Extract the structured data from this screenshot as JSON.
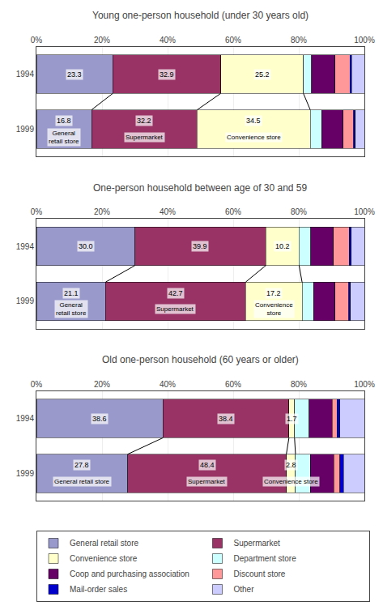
{
  "chart_data": [
    {
      "type": "bar",
      "orientation": "horizontal",
      "stacked": true,
      "grid": true,
      "legend": "bottom",
      "title": "Young one-person household (under 30 years old)",
      "categories": [
        "1994",
        "1999"
      ],
      "series": [
        {
          "name": "General retail store",
          "color": "#9999cc",
          "values": [
            23.3,
            16.8
          ],
          "value_labels": [
            "23.3",
            "16.8"
          ]
        },
        {
          "name": "Supermarket",
          "color": "#993366",
          "values": [
            32.9,
            32.2
          ],
          "value_labels": [
            "32.9",
            "32.2"
          ]
        },
        {
          "name": "Convenience store",
          "color": "#ffffcc",
          "values": [
            25.2,
            34.5
          ],
          "value_labels": [
            "25.2",
            "34.5"
          ]
        },
        {
          "name": "Department store",
          "color": "#ccffff",
          "values": [
            2.5,
            3.5
          ]
        },
        {
          "name": "Coop and purchasing association",
          "color": "#660066",
          "values": [
            7.2,
            6.5
          ]
        },
        {
          "name": "Discount store",
          "color": "#ff9999",
          "values": [
            4.5,
            3.2
          ]
        },
        {
          "name": "Mail-order sales",
          "color": "#0000cc",
          "values": [
            0.5,
            0.5
          ]
        },
        {
          "name": "Other",
          "color": "#ccccff",
          "values": [
            3.9,
            2.8
          ]
        }
      ],
      "annotations": [
        {
          "text": "General\nretail store",
          "category": "1999",
          "series": "General retail store"
        },
        {
          "text": "Supermarket",
          "category": "1999",
          "series": "Supermarket"
        },
        {
          "text": "Convenience store",
          "category": "1999",
          "series": "Convenience store"
        }
      ],
      "xlim": [
        0,
        100
      ],
      "xticks": [
        {
          "value": 0,
          "label": "0%"
        },
        {
          "value": 20,
          "label": "20%"
        },
        {
          "value": 40,
          "label": "40%"
        },
        {
          "value": 60,
          "label": "60%"
        },
        {
          "value": 80,
          "label": "80%"
        },
        {
          "value": 100,
          "label": "100%"
        }
      ]
    },
    {
      "type": "bar",
      "orientation": "horizontal",
      "stacked": true,
      "grid": true,
      "legend": "bottom",
      "title": "One-person household between age of 30 and 59",
      "categories": [
        "1994",
        "1999"
      ],
      "series": [
        {
          "name": "General retail store",
          "color": "#9999cc",
          "values": [
            30.0,
            21.1
          ],
          "value_labels": [
            "30.0",
            "21.1"
          ]
        },
        {
          "name": "Supermarket",
          "color": "#993366",
          "values": [
            39.9,
            42.7
          ],
          "value_labels": [
            "39.9",
            "42.7"
          ]
        },
        {
          "name": "Convenience store",
          "color": "#ffffcc",
          "values": [
            10.2,
            17.2
          ],
          "value_labels": [
            "10.2",
            "17.2"
          ]
        },
        {
          "name": "Department store",
          "color": "#ccffff",
          "values": [
            3.5,
            3.5
          ]
        },
        {
          "name": "Coop and purchasing association",
          "color": "#660066",
          "values": [
            7.0,
            6.5
          ]
        },
        {
          "name": "Discount store",
          "color": "#ff9999",
          "values": [
            4.8,
            4.2
          ]
        },
        {
          "name": "Mail-order sales",
          "color": "#0000cc",
          "values": [
            0.6,
            0.5
          ]
        },
        {
          "name": "Other",
          "color": "#ccccff",
          "values": [
            4.0,
            4.3
          ]
        }
      ],
      "annotations": [
        {
          "text": "General\nretail store",
          "category": "1999",
          "series": "General retail store"
        },
        {
          "text": "Supermarket",
          "category": "1999",
          "series": "Supermarket"
        },
        {
          "text": "Convenience\nstore",
          "category": "1999",
          "series": "Convenience store"
        }
      ],
      "xlim": [
        0,
        100
      ],
      "xticks": [
        {
          "value": 0,
          "label": "0%"
        },
        {
          "value": 20,
          "label": "20%"
        },
        {
          "value": 40,
          "label": "40%"
        },
        {
          "value": 60,
          "label": "60%"
        },
        {
          "value": 80,
          "label": "80%"
        },
        {
          "value": 100,
          "label": "100%"
        }
      ]
    },
    {
      "type": "bar",
      "orientation": "horizontal",
      "stacked": true,
      "grid": true,
      "legend": "bottom",
      "title": "Old one-person household (60 years or older)",
      "categories": [
        "1994",
        "1999"
      ],
      "series": [
        {
          "name": "General retail store",
          "color": "#9999cc",
          "values": [
            38.6,
            27.8
          ],
          "value_labels": [
            "38.6",
            "27.8"
          ]
        },
        {
          "name": "Supermarket",
          "color": "#993366",
          "values": [
            38.4,
            48.4
          ],
          "value_labels": [
            "38.4",
            "48.4"
          ]
        },
        {
          "name": "Convenience store",
          "color": "#ffffcc",
          "values": [
            1.7,
            2.8
          ],
          "value_labels": [
            "1.7",
            "2.8"
          ]
        },
        {
          "name": "Department store",
          "color": "#ccffff",
          "values": [
            4.5,
            4.5
          ]
        },
        {
          "name": "Coop and purchasing association",
          "color": "#660066",
          "values": [
            7.0,
            7.2
          ]
        },
        {
          "name": "Discount store",
          "color": "#ff9999",
          "values": [
            1.5,
            1.8
          ]
        },
        {
          "name": "Mail-order sales",
          "color": "#0000cc",
          "values": [
            0.8,
            1.2
          ]
        },
        {
          "name": "Other",
          "color": "#ccccff",
          "values": [
            7.5,
            6.3
          ]
        }
      ],
      "annotations": [
        {
          "text": "General retail store",
          "category": "1999",
          "series": "General retail store"
        },
        {
          "text": "Supermarket",
          "category": "1999",
          "series": "Supermarket"
        },
        {
          "text": "Convenience store",
          "category": "1999",
          "series": "Convenience store"
        }
      ],
      "xlim": [
        0,
        100
      ],
      "xticks": [
        {
          "value": 0,
          "label": "0%"
        },
        {
          "value": 20,
          "label": "20%"
        },
        {
          "value": 40,
          "label": "40%"
        },
        {
          "value": 60,
          "label": "60%"
        },
        {
          "value": 80,
          "label": "80%"
        },
        {
          "value": 100,
          "label": "100%"
        }
      ]
    }
  ]
}
